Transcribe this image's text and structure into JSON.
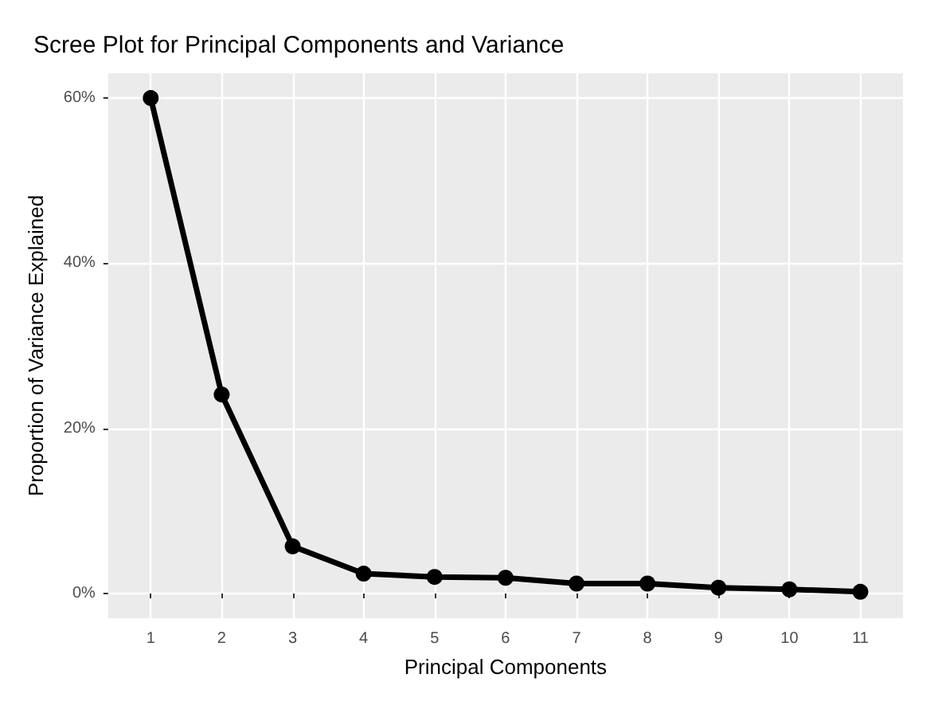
{
  "chart_data": {
    "type": "line",
    "title": "Scree Plot for Principal Components and Variance",
    "xlabel": "Principal Components",
    "ylabel": "Proportion of Variance Explained",
    "categories": [
      "1",
      "2",
      "3",
      "4",
      "5",
      "6",
      "7",
      "8",
      "9",
      "10",
      "11"
    ],
    "series": [
      {
        "color": "#000000",
        "values": [
          60,
          24.1,
          5.7,
          2.4,
          2.0,
          1.9,
          1.2,
          1.2,
          0.7,
          0.5,
          0.2
        ]
      }
    ],
    "ylim": [
      -3,
      63
    ],
    "yticks": [
      {
        "value": 0,
        "label": "0%"
      },
      {
        "value": 20,
        "label": "20%"
      },
      {
        "value": 40,
        "label": "40%"
      },
      {
        "value": 60,
        "label": "60%"
      }
    ],
    "grid": true,
    "marker": "circle",
    "line_style": "solid"
  }
}
